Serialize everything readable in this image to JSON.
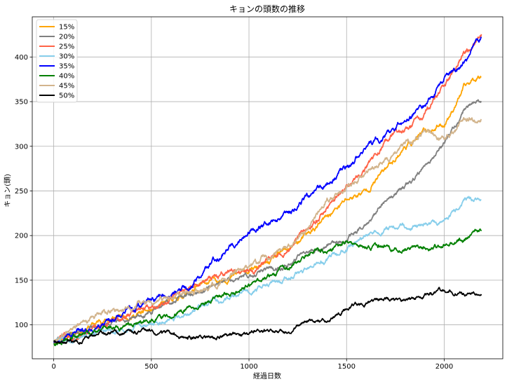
{
  "chart_data": {
    "type": "line",
    "title": "キョンの頭数の推移",
    "xlabel": "経過日数",
    "ylabel": "キョン(頭)",
    "xlim": [
      -110,
      2300
    ],
    "ylim": [
      62,
      445
    ],
    "xticks": [
      0,
      500,
      1000,
      1500,
      2000
    ],
    "yticks": [
      100,
      150,
      200,
      250,
      300,
      350,
      400
    ],
    "grid": true,
    "legend_position": "top-left",
    "series": [
      {
        "name": "15%",
        "color": "#ffa500",
        "seed": 11,
        "noise": 2.0,
        "x": [
          0,
          250,
          500,
          800,
          1000,
          1100,
          1300,
          1400,
          1500,
          1600,
          1700,
          1800,
          1900,
          2000,
          2100,
          2190
        ],
        "y": [
          82,
          105,
          115,
          148,
          160,
          168,
          200,
          220,
          240,
          250,
          275,
          300,
          315,
          325,
          365,
          382
        ]
      },
      {
        "name": "20%",
        "color": "#808080",
        "seed": 22,
        "noise": 1.8,
        "x": [
          0,
          250,
          500,
          800,
          1000,
          1200,
          1400,
          1500,
          1600,
          1700,
          1800,
          1900,
          2000,
          2100,
          2190
        ],
        "y": [
          82,
          100,
          117,
          143,
          155,
          167,
          190,
          195,
          215,
          240,
          255,
          275,
          305,
          340,
          352
        ]
      },
      {
        "name": "25%",
        "color": "#ff6347",
        "seed": 33,
        "noise": 2.2,
        "x": [
          0,
          250,
          500,
          800,
          1000,
          1200,
          1400,
          1500,
          1600,
          1700,
          1800,
          1900,
          2000,
          2100,
          2190
        ],
        "y": [
          82,
          100,
          122,
          150,
          160,
          185,
          230,
          255,
          275,
          305,
          320,
          335,
          365,
          405,
          428
        ]
      },
      {
        "name": "30%",
        "color": "#87ceeb",
        "seed": 44,
        "noise": 1.8,
        "x": [
          0,
          250,
          500,
          800,
          1000,
          1200,
          1400,
          1500,
          1600,
          1700,
          1800,
          1900,
          2000,
          2100,
          2190
        ],
        "y": [
          82,
          90,
          100,
          122,
          138,
          152,
          172,
          185,
          200,
          207,
          210,
          212,
          215,
          238,
          243
        ]
      },
      {
        "name": "35%",
        "color": "#0000ff",
        "seed": 55,
        "noise": 2.2,
        "x": [
          0,
          200,
          500,
          700,
          900,
          1000,
          1200,
          1400,
          1500,
          1600,
          1700,
          1800,
          1900,
          2000,
          2100,
          2190
        ],
        "y": [
          82,
          98,
          125,
          145,
          190,
          203,
          225,
          260,
          275,
          300,
          310,
          330,
          345,
          375,
          395,
          415
        ]
      },
      {
        "name": "40%",
        "color": "#008000",
        "seed": 66,
        "noise": 1.8,
        "x": [
          0,
          250,
          500,
          800,
          1000,
          1100,
          1200,
          1300,
          1400,
          1500,
          1600,
          1700,
          1800,
          1900,
          2000,
          2100,
          2190
        ],
        "y": [
          80,
          95,
          106,
          125,
          145,
          155,
          165,
          180,
          183,
          193,
          185,
          190,
          185,
          187,
          190,
          197,
          205
        ]
      },
      {
        "name": "45%",
        "color": "#d2b48c",
        "seed": 77,
        "noise": 2.2,
        "x": [
          0,
          250,
          500,
          800,
          1000,
          1200,
          1300,
          1400,
          1500,
          1600,
          1700,
          1800,
          1900,
          2000,
          2100,
          2190
        ],
        "y": [
          83,
          112,
          125,
          140,
          165,
          185,
          205,
          240,
          255,
          265,
          285,
          300,
          315,
          310,
          325,
          334
        ]
      },
      {
        "name": "50%",
        "color": "#000000",
        "seed": 88,
        "noise": 1.5,
        "x": [
          0,
          100,
          250,
          400,
          600,
          800,
          1000,
          1100,
          1200,
          1300,
          1400,
          1500,
          1600,
          1700,
          1800,
          1900,
          2000,
          2100,
          2190
        ],
        "y": [
          83,
          82,
          90,
          92,
          88,
          85,
          90,
          95,
          93,
          105,
          103,
          120,
          127,
          128,
          126,
          132,
          138,
          133,
          135
        ]
      }
    ]
  }
}
